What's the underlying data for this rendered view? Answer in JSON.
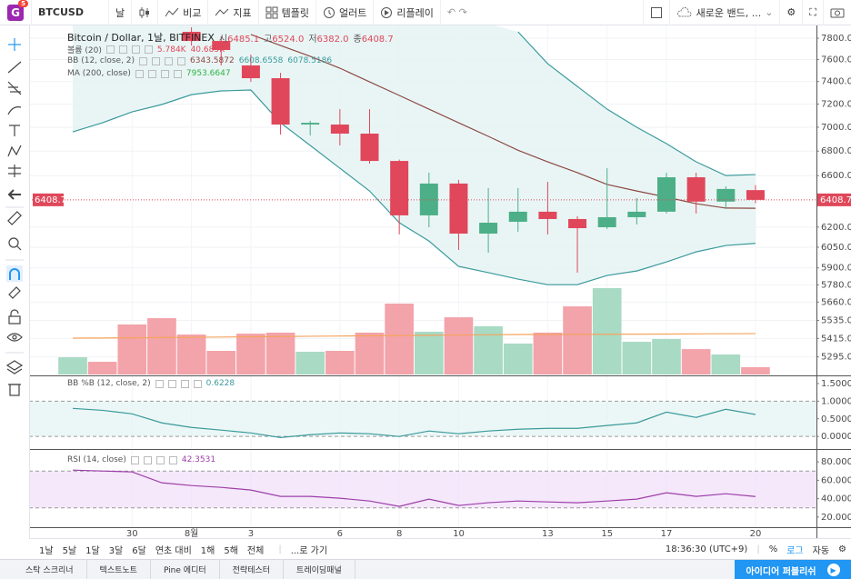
{
  "toolbar": {
    "badge": "G",
    "badge_count": "5",
    "symbol": "BTCUSD",
    "interval": "날",
    "compare": "비교",
    "indicators": "지표",
    "templates": "템플릿",
    "alert": "얼러트",
    "replay": "리플레이",
    "layout": "새로운 밴드, ..."
  },
  "bottom_bar": {
    "ranges": [
      "1날",
      "5날",
      "1달",
      "3달",
      "6달",
      "연초 대비",
      "1해",
      "5해",
      "전체"
    ],
    "goto": "...로 가기",
    "clock": "18:36:30 (UTC+9)",
    "percent": "%",
    "log": "로그",
    "auto": "자동"
  },
  "footer": {
    "tabs": [
      "스탁 스크리너",
      "텍스트노트",
      "Pine 에디터",
      "전략테스터",
      "트레이딩패널"
    ],
    "publish": "아이디어 퍼블리쉬"
  },
  "chart_data": {
    "type": "candlestick",
    "title": "Bitcoin / Dollar, 1날, BITFINEX",
    "log_scale": true,
    "grid": true,
    "price_line": true,
    "categories": [
      null,
      null,
      "30",
      null,
      "8월",
      null,
      "3",
      null,
      null,
      "6",
      null,
      "8",
      null,
      "10",
      null,
      null,
      "13",
      null,
      "15",
      null,
      "17",
      null,
      null,
      "20"
    ],
    "open": [
      null,
      null,
      null,
      null,
      7861,
      7774,
      7546,
      7430,
      7023,
      7023,
      6946,
      6719,
      6289,
      6537,
      6151,
      6240,
      6317,
      6261,
      6199,
      6275,
      6317,
      6587,
      6395,
      6485.1
    ],
    "high": [
      null,
      null,
      null,
      null,
      7904,
      7817,
      7646,
      7479,
      7055,
      7156,
      7156,
      6730,
      6624,
      6566,
      6501,
      6501,
      6551,
      6282,
      6660,
      6423,
      6624,
      6624,
      6515,
      6524.0
    ],
    "low": [
      null,
      null,
      null,
      null,
      7730,
      7546,
      7397,
      6938,
      6930,
      6847,
      6697,
      6145,
      6199,
      6030,
      6010,
      6165,
      6145,
      5866,
      6185,
      6220,
      6303,
      6303,
      6338,
      6382.0
    ],
    "close": [
      null,
      null,
      null,
      null,
      7774,
      7689,
      7430,
      7023,
      7038,
      6946,
      6719,
      6289,
      6537,
      6151,
      6233,
      6317,
      6261,
      6192,
      6275,
      6317,
      6587,
      6395,
      6494,
      6408.7
    ],
    "up_color": "#4caf87",
    "down_color": "#e0475a",
    "ylim": [
      5183,
      7922
    ],
    "yticks": [
      {
        "value": 7800,
        "label": "7800.0"
      },
      {
        "value": 7600,
        "label": "7600.0"
      },
      {
        "value": 7400,
        "label": "7400.0"
      },
      {
        "value": 7200,
        "label": "7200.0"
      },
      {
        "value": 7000,
        "label": "7000.0"
      },
      {
        "value": 6800,
        "label": "6800.0"
      },
      {
        "value": 6600,
        "label": "6600.0"
      },
      {
        "value": 6200,
        "label": "6200.0"
      },
      {
        "value": 6050,
        "label": "6050.0"
      },
      {
        "value": 5900,
        "label": "5900.0"
      },
      {
        "value": 5780,
        "label": "5780.0"
      },
      {
        "value": 5660,
        "label": "5660.0"
      },
      {
        "value": 5535,
        "label": "5535.0"
      },
      {
        "value": 5415,
        "label": "5415.0"
      },
      {
        "value": 5295,
        "label": "5295.0"
      }
    ],
    "ohlc_legend": [
      {
        "label": "시",
        "value": "6485.1"
      },
      {
        "label": "고",
        "value": "6524.0"
      },
      {
        "label": "저",
        "value": "6382.0"
      },
      {
        "label": "종",
        "value": "6408.7"
      }
    ],
    "volume": {
      "title": "볼륨 (20)",
      "legend_values": [
        "5.784K",
        "40.685K"
      ],
      "values": [
        13700,
        10100,
        39800,
        44800,
        31800,
        18800,
        32500,
        33300,
        18100,
        18800,
        33300,
        56400,
        34000,
        45500,
        38300,
        24600,
        33300,
        54200,
        68700,
        26000,
        28200,
        20200,
        15900,
        5784
      ],
      "colors": [
        "#a8dac4",
        "#f3a3aa",
        "#f3a3aa",
        "#f3a3aa",
        "#f3a3aa",
        "#f3a3aa",
        "#f3a3aa",
        "#f3a3aa",
        "#a8dac4",
        "#f3a3aa",
        "#f3a3aa",
        "#f3a3aa",
        "#a8dac4",
        "#f3a3aa",
        "#a8dac4",
        "#a8dac4",
        "#f3a3aa",
        "#f3a3aa",
        "#a8dac4",
        "#a8dac4",
        "#a8dac4",
        "#f3a3aa",
        "#a8dac4",
        "#f3a3aa"
      ],
      "ma": {
        "color": "#f5a45d",
        "values": [
          28900,
          29000,
          29200,
          29400,
          29600,
          29800,
          30000,
          30200,
          30400,
          30600,
          30800,
          31000,
          31200,
          31400,
          31600,
          31800,
          31800,
          31900,
          32000,
          32100,
          32200,
          32300,
          32400,
          32500
        ]
      }
    },
    "bb": {
      "title": "BB (12, close, 2)",
      "legend_values": [
        "6343.5872",
        "6608.6558",
        "6078.5186"
      ],
      "fill": "#e3f3f2",
      "basis": {
        "color": "#8e4a44",
        "values": [
          null,
          null,
          null,
          null,
          null,
          null,
          7835,
          7731,
          7630,
          7521,
          7397,
          7276,
          7156,
          7038,
          6923,
          6807,
          6712,
          6624,
          6530,
          6478,
          6430,
          6379,
          6345,
          6343.5872
        ]
      },
      "upper": {
        "color": "#3b9a9c",
        "values": [
          null,
          null,
          null,
          null,
          null,
          null,
          null,
          null,
          null,
          null,
          null,
          null,
          null,
          null,
          null,
          7861,
          7562,
          7356,
          7156,
          7000,
          6862,
          6712,
          6601,
          6608.6558
        ]
      },
      "lower": {
        "color": "#3b9a9c",
        "values": [
          6961,
          7038,
          7132,
          7196,
          7283,
          7316,
          7324,
          7038,
          6847,
          6660,
          6478,
          6233,
          6096,
          5911,
          5866,
          5820,
          5781,
          5781,
          5846,
          5878,
          5943,
          6016,
          6063,
          6078.5186
        ]
      }
    },
    "ma": {
      "title": "MA (200, close)",
      "legend_values": [
        "7953.6647"
      ],
      "color": "#2fb344"
    },
    "bbp": {
      "title": "BB %B (12, close, 2)",
      "legend_values": [
        "0.6228"
      ],
      "color": "#3b9a9c",
      "fill": "#e3f3f2",
      "ylim": [
        -0.33,
        1.73
      ],
      "bands": [
        1,
        0
      ],
      "yticks": [
        {
          "value": 1.5,
          "label": "1.5000"
        },
        {
          "value": 1,
          "label": "1.0000"
        },
        {
          "value": 0.5,
          "label": "0.5000"
        },
        {
          "value": 0,
          "label": "0.0000"
        }
      ],
      "values": [
        0.795,
        0.74,
        0.64,
        0.385,
        0.256,
        0.18,
        0.1,
        -0.03,
        0.05,
        0.1,
        0.077,
        0,
        0.154,
        0.077,
        0.154,
        0.205,
        0.23,
        0.23,
        0.31,
        0.385,
        0.69,
        0.54,
        0.77,
        0.6228
      ]
    },
    "rsi": {
      "title": "RSI (14, close)",
      "legend_values": [
        "42.3531"
      ],
      "color": "#9c3fa8",
      "fill": "#f1defa",
      "ylim": [
        9,
        94
      ],
      "bands": [
        70,
        30
      ],
      "yticks": [
        {
          "value": 80,
          "label": "80.0000"
        },
        {
          "value": 60,
          "label": "60.0000"
        },
        {
          "value": 40,
          "label": "40.0000"
        },
        {
          "value": 20,
          "label": "20.0000"
        }
      ],
      "values": [
        71.1,
        70.1,
        69.1,
        57.3,
        54.3,
        52.3,
        49.4,
        42.5,
        42.5,
        40.5,
        37.5,
        31.6,
        39.5,
        32.6,
        35.6,
        37.5,
        36.5,
        35.6,
        37.5,
        39.5,
        46.4,
        42.5,
        45.4,
        42.3531
      ]
    }
  }
}
